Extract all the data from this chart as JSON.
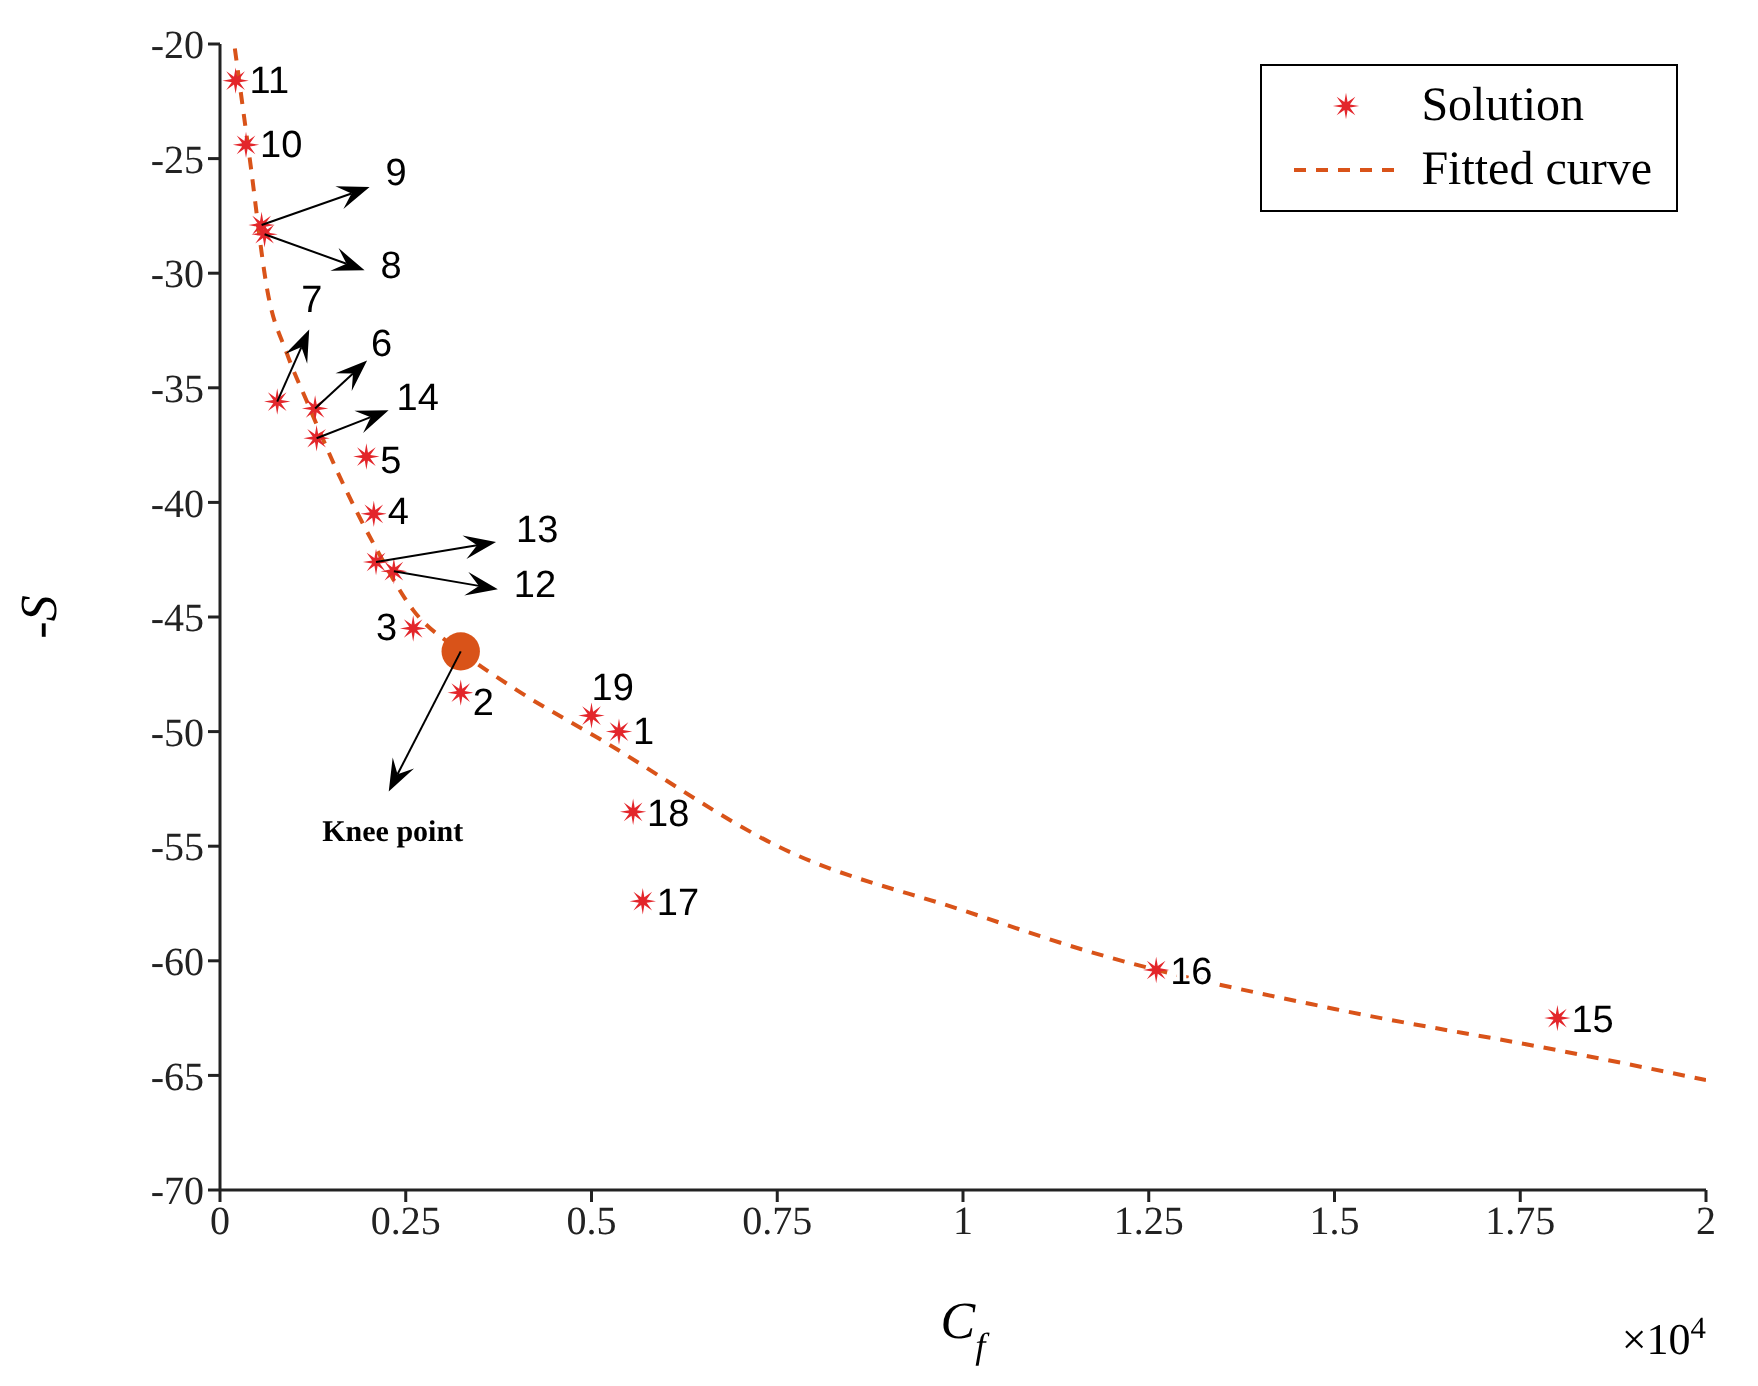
{
  "chart_data": {
    "type": "scatter",
    "xlabel": "C$_{f}$",
    "ylabel": "-S",
    "xlim": [
      0,
      2
    ],
    "xticks": [
      0,
      0.25,
      0.5,
      0.75,
      1,
      1.25,
      1.5,
      1.75,
      2
    ],
    "ylim": [
      -70,
      -20
    ],
    "yticks": [
      -70,
      -65,
      -60,
      -55,
      -50,
      -45,
      -40,
      -35,
      -30,
      -25,
      -20
    ],
    "grid": false,
    "legend": "top right",
    "series": [
      {
        "name": "Solution",
        "color": "#e3262b",
        "marker": "star",
        "x": [
          0.537,
          0.324,
          0.26,
          0.207,
          0.197,
          0.128,
          0.077,
          0.06,
          0.056,
          0.035,
          0.021,
          0.234,
          0.21,
          0.13,
          1.8,
          1.26,
          0.569,
          0.556,
          0.5
        ],
        "values": [
          -50.0,
          -48.3,
          -45.5,
          -40.5,
          -38.0,
          -35.9,
          -35.6,
          -28.3,
          -27.9,
          -24.4,
          -21.6,
          -43.0,
          -42.6,
          -37.2,
          -62.5,
          -60.4,
          -57.4,
          -53.5,
          -49.3
        ]
      },
      {
        "name": "Fitted curve",
        "type": "line",
        "color": "#d95319",
        "line_style": "dashed",
        "marker": "none",
        "x": [
          0.02,
          0.04,
          0.064,
          0.09,
          0.117,
          0.16,
          0.21,
          0.26,
          0.324,
          0.4,
          0.51,
          0.77,
          1.0,
          1.17,
          1.5,
          1.8,
          2.0
        ],
        "values": [
          -20.2,
          -25,
          -30.8,
          -33.5,
          -35.6,
          -38.8,
          -42.0,
          -44.7,
          -46.5,
          -48.2,
          -50.3,
          -55.3,
          -57.8,
          -59.6,
          -62.1,
          -63.9,
          -65.2
        ]
      },
      {
        "color": "#d95319",
        "marker": "circle",
        "x": [
          0.324
        ],
        "values": [
          -46.5
        ]
      }
    ],
    "annotations": [
      {
        "text": "1",
        "x": 0.537,
        "y": -50.0
      },
      {
        "text": "2",
        "x": 0.324,
        "y": -48.3
      },
      {
        "text": "3",
        "x": 0.26,
        "y": -45.5
      },
      {
        "text": "4",
        "x": 0.207,
        "y": -40.5
      },
      {
        "text": "5",
        "x": 0.197,
        "y": -38.0
      },
      {
        "text": "6",
        "x": 0.128,
        "y": -35.9
      },
      {
        "text": "7",
        "x": 0.077,
        "y": -35.6
      },
      {
        "text": "8",
        "x": 0.06,
        "y": -28.3
      },
      {
        "text": "9",
        "x": 0.056,
        "y": -27.9
      },
      {
        "text": "10",
        "x": 0.035,
        "y": -24.4
      },
      {
        "text": "11",
        "x": 0.021,
        "y": -21.6
      },
      {
        "text": "12",
        "x": 0.234,
        "y": -43.0
      },
      {
        "text": "13",
        "x": 0.21,
        "y": -42.6
      },
      {
        "text": "14",
        "x": 0.13,
        "y": -37.2
      },
      {
        "text": "15",
        "x": 1.8,
        "y": -62.5
      },
      {
        "text": "16",
        "x": 1.26,
        "y": -60.4
      },
      {
        "text": "17",
        "x": 0.569,
        "y": -57.4
      },
      {
        "text": "18",
        "x": 0.556,
        "y": -53.5
      },
      {
        "text": "19",
        "x": 0.5,
        "y": -49.3
      },
      "Knee point",
      "×10$^{4}$"
    ]
  }
}
